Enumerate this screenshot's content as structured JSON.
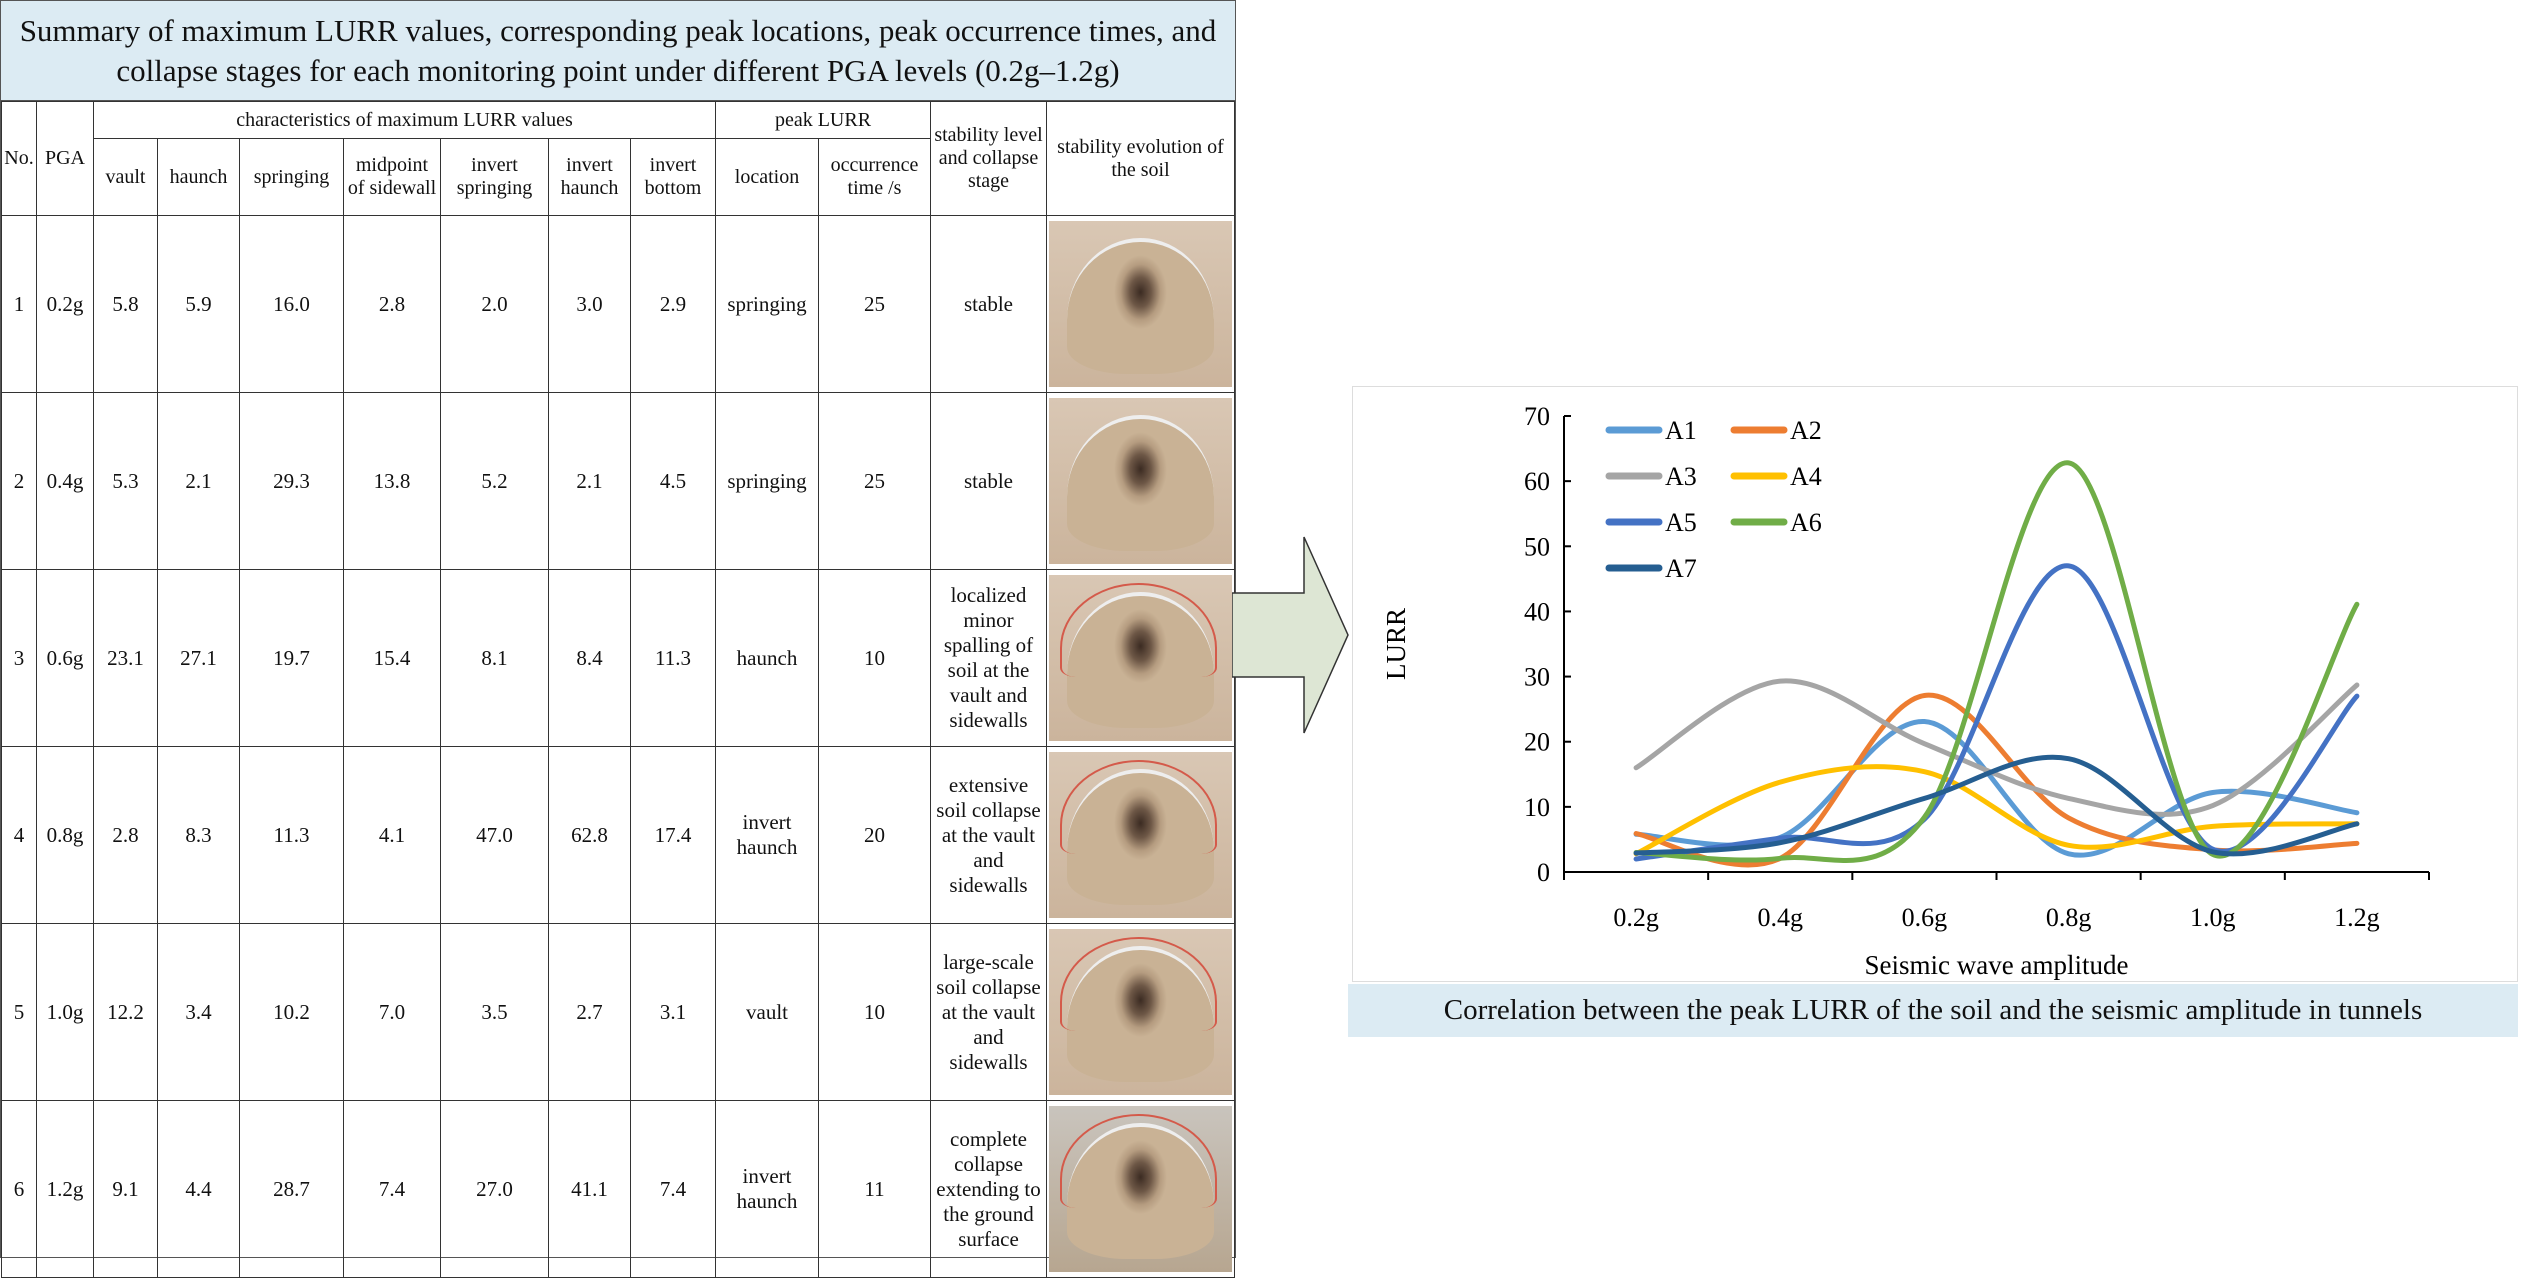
{
  "table": {
    "title": "Summary of maximum LURR values, corresponding peak locations, peak occurrence times, and collapse stages for each monitoring point under different PGA levels (0.2g–1.2g)",
    "headers": {
      "no": "No.",
      "pga": "PGA",
      "group_lurr": "characteristics of maximum LURR values",
      "group_peak": "peak LURR",
      "stability": "stability level and collapse stage",
      "evolution": "stability evolution of the soil",
      "vault": "vault",
      "haunch": "haunch",
      "springing": "springing",
      "midpoint": "midpoint of sidewall",
      "invert_springing": "invert springing",
      "invert_haunch": "invert haunch",
      "invert_bottom": "invert bottom",
      "location": "location",
      "occurrence": "occurrence time /s"
    },
    "rows": [
      {
        "no": "1",
        "pga": "0.2g",
        "vault": "5.8",
        "haunch": "5.9",
        "springing": "16.0",
        "midpoint": "2.8",
        "invert_springing": "2.0",
        "invert_haunch": "3.0",
        "invert_bottom": "2.9",
        "location": "springing",
        "time": "25",
        "stage": "stable"
      },
      {
        "no": "2",
        "pga": "0.4g",
        "vault": "5.3",
        "haunch": "2.1",
        "springing": "29.3",
        "midpoint": "13.8",
        "invert_springing": "5.2",
        "invert_haunch": "2.1",
        "invert_bottom": "4.5",
        "location": "springing",
        "time": "25",
        "stage": "stable"
      },
      {
        "no": "3",
        "pga": "0.6g",
        "vault": "23.1",
        "haunch": "27.1",
        "springing": "19.7",
        "midpoint": "15.4",
        "invert_springing": "8.1",
        "invert_haunch": "8.4",
        "invert_bottom": "11.3",
        "location": "haunch",
        "time": "10",
        "stage": "localized minor spalling of soil at the vault and sidewalls"
      },
      {
        "no": "4",
        "pga": "0.8g",
        "vault": "2.8",
        "haunch": "8.3",
        "springing": "11.3",
        "midpoint": "4.1",
        "invert_springing": "47.0",
        "invert_haunch": "62.8",
        "invert_bottom": "17.4",
        "location": "invert haunch",
        "time": "20",
        "stage": "extensive soil collapse at the vault and sidewalls"
      },
      {
        "no": "5",
        "pga": "1.0g",
        "vault": "12.2",
        "haunch": "3.4",
        "springing": "10.2",
        "midpoint": "7.0",
        "invert_springing": "3.5",
        "invert_haunch": "2.7",
        "invert_bottom": "3.1",
        "location": "vault",
        "time": "10",
        "stage": "large-scale soil collapse at the vault and sidewalls"
      },
      {
        "no": "6",
        "pga": "1.2g",
        "vault": "9.1",
        "haunch": "4.4",
        "springing": "28.7",
        "midpoint": "7.4",
        "invert_springing": "27.0",
        "invert_haunch": "41.1",
        "invert_bottom": "7.4",
        "location": "invert haunch",
        "time": "11",
        "stage": "complete collapse extending to the ground surface"
      }
    ]
  },
  "chart_data": {
    "type": "line",
    "smooth": true,
    "categories": [
      "0.2g",
      "0.4g",
      "0.6g",
      "0.8g",
      "1.0g",
      "1.2g"
    ],
    "xlabel": "Seismic  wave amplitude",
    "ylabel": "LURR",
    "ylim": [
      0,
      70
    ],
    "yticks": [
      "0",
      "10",
      "20",
      "30",
      "40",
      "50",
      "60",
      "70"
    ],
    "grid": false,
    "legend": "top-left",
    "caption": "Correlation between the peak LURR of the soil and the seismic amplitude in tunnels",
    "series": [
      {
        "name": "A1",
        "color": "#5b9bd5",
        "values": [
          5.8,
          5.3,
          23.1,
          2.8,
          12.2,
          9.1
        ]
      },
      {
        "name": "A2",
        "color": "#ed7d31",
        "values": [
          5.9,
          2.1,
          27.1,
          8.3,
          3.4,
          4.4
        ]
      },
      {
        "name": "A3",
        "color": "#a5a5a5",
        "values": [
          16.0,
          29.3,
          19.7,
          11.3,
          10.2,
          28.7
        ]
      },
      {
        "name": "A4",
        "color": "#ffc000",
        "values": [
          2.8,
          13.8,
          15.4,
          4.1,
          7.0,
          7.4
        ]
      },
      {
        "name": "A5",
        "color": "#4472c4",
        "values": [
          2.0,
          5.2,
          8.1,
          47.0,
          3.5,
          27.0
        ]
      },
      {
        "name": "A6",
        "color": "#70ad47",
        "values": [
          3.0,
          2.1,
          8.4,
          62.8,
          2.7,
          41.1
        ]
      },
      {
        "name": "A7",
        "color": "#255e91",
        "values": [
          2.9,
          4.5,
          11.3,
          17.4,
          3.1,
          7.4
        ]
      }
    ]
  },
  "colors": {
    "title_bg": "#dcebf3",
    "arrow_fill": "#dde6d4"
  }
}
